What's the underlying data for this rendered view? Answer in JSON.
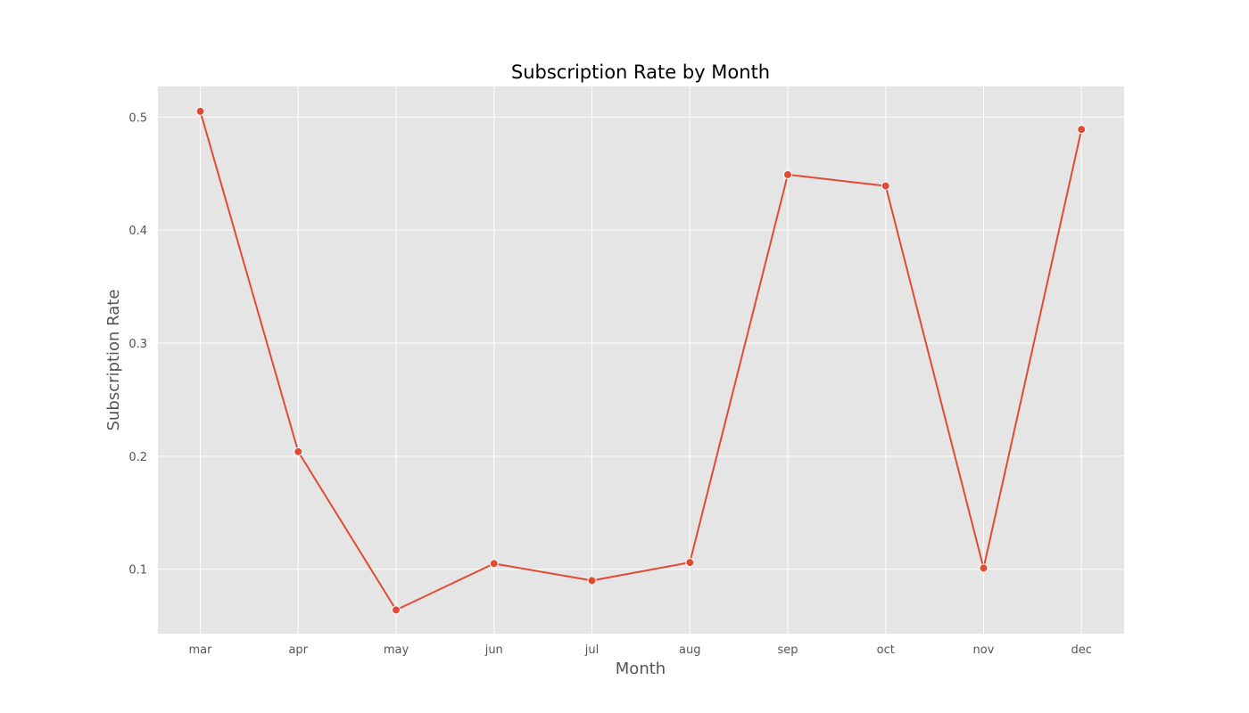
{
  "chart_data": {
    "type": "line",
    "title": "Subscription Rate by Month",
    "xlabel": "Month",
    "ylabel": "Subscription Rate",
    "categories": [
      "mar",
      "apr",
      "may",
      "jun",
      "jul",
      "aug",
      "sep",
      "oct",
      "nov",
      "dec"
    ],
    "series": [
      {
        "values": [
          0.505,
          0.204,
          0.064,
          0.105,
          0.09,
          0.106,
          0.449,
          0.439,
          0.101,
          0.489
        ]
      }
    ],
    "yticks": [
      "0.1",
      "0.2",
      "0.3",
      "0.4",
      "0.5"
    ],
    "ylim": [
      0.043,
      0.527
    ],
    "grid": true,
    "colors": {
      "line": "#E24A33",
      "plot_background": "#E5E5E5",
      "grid": "#FFFFFF"
    }
  }
}
